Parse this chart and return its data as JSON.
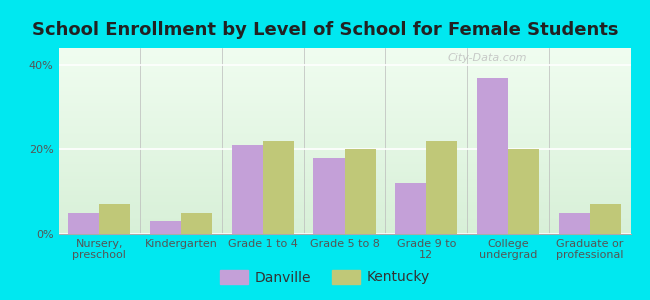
{
  "title": "School Enrollment by Level of School for Female Students",
  "categories": [
    "Nursery,\npreschool",
    "Kindergarten",
    "Grade 1 to 4",
    "Grade 5 to 8",
    "Grade 9 to\n12",
    "College\nundergrad",
    "Graduate or\nprofessional"
  ],
  "danville": [
    5,
    3,
    21,
    18,
    12,
    37,
    5
  ],
  "kentucky": [
    7,
    5,
    22,
    20,
    22,
    20,
    7
  ],
  "danville_color": "#c4a0d8",
  "kentucky_color": "#c0c878",
  "fig_bg_color": "#00e8f0",
  "plot_bg_top": "#f0fdf0",
  "plot_bg_bottom": "#d8f0d8",
  "ylabel_ticks": [
    "0%",
    "20%",
    "40%"
  ],
  "yticks": [
    0,
    20,
    40
  ],
  "ylim": [
    0,
    44
  ],
  "title_fontsize": 13,
  "tick_fontsize": 8,
  "legend_fontsize": 10,
  "bar_width": 0.38,
  "watermark": "City-Data.com",
  "grid_color": "#ffffff"
}
